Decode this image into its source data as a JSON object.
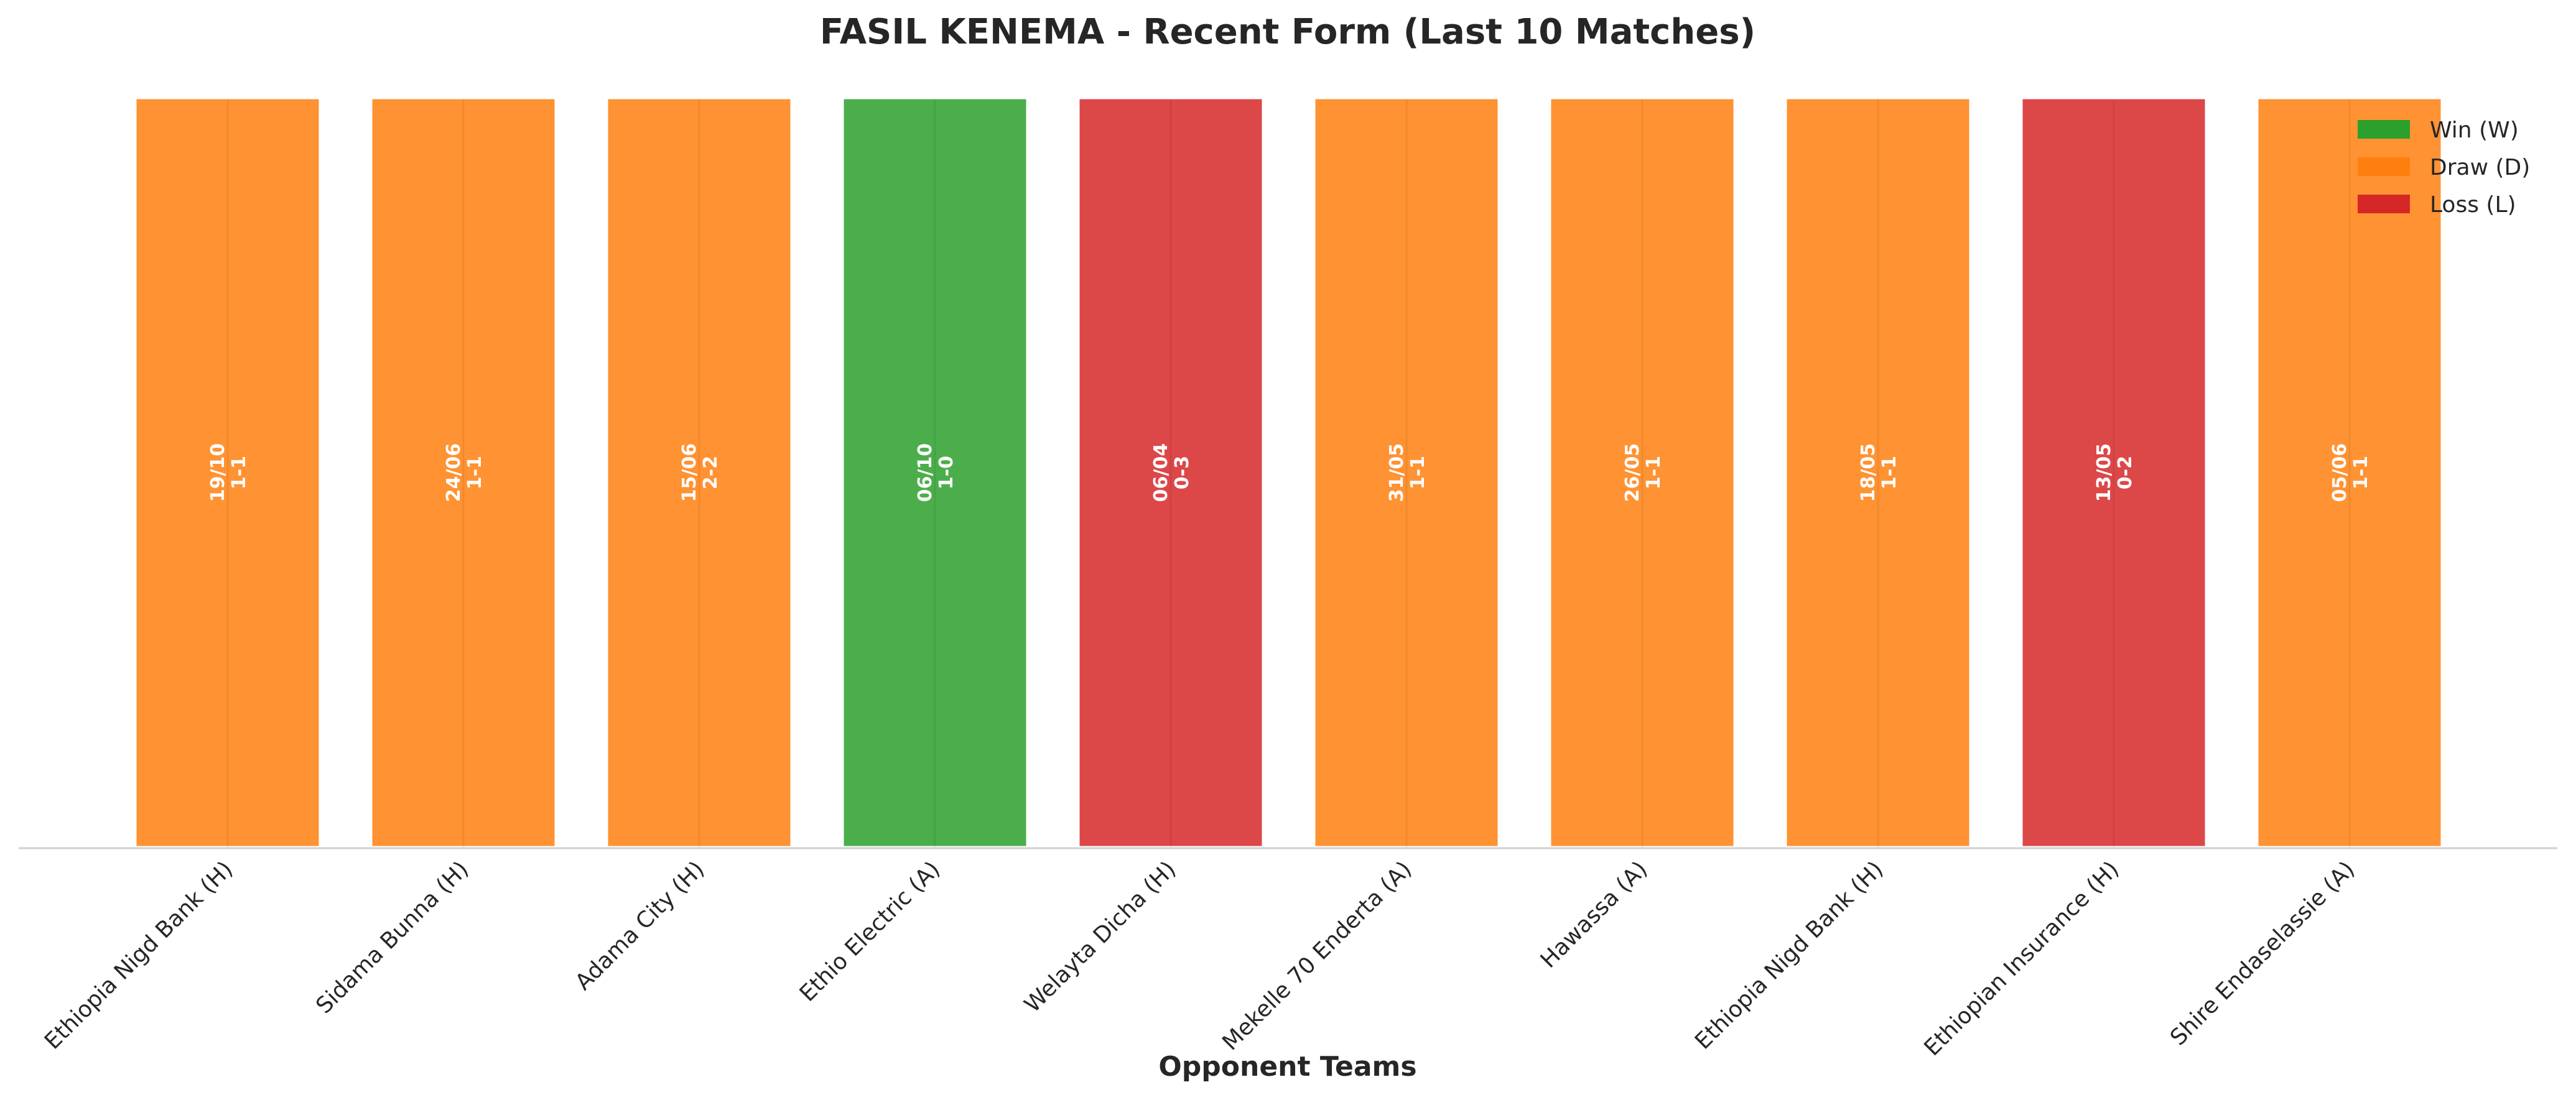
{
  "chart_data": {
    "type": "bar",
    "title": "FASIL KENEMA - Recent Form (Last 10 Matches)",
    "xlabel": "Opponent Teams",
    "ylabel": "",
    "categories": [
      "Ethiopia Nigd Bank (H)",
      "Sidama Bunna (H)",
      "Adama City (H)",
      "Ethio Electric (A)",
      "Welayta Dicha (H)",
      "Mekelle 70 Enderta (A)",
      "Hawassa (A)",
      "Ethiopia Nigd Bank (H)",
      "Ethiopian Insurance (H)",
      "Shire Endaselassie (A)"
    ],
    "values": [
      1,
      1,
      1,
      1,
      1,
      1,
      1,
      1,
      1,
      1
    ],
    "results": [
      "D",
      "D",
      "D",
      "W",
      "L",
      "D",
      "D",
      "D",
      "L",
      "D"
    ],
    "dates": [
      "19/10",
      "24/06",
      "15/06",
      "06/10",
      "06/04",
      "31/05",
      "26/05",
      "18/05",
      "13/05",
      "05/06"
    ],
    "scores": [
      "1-1",
      "1-1",
      "2-2",
      "1-0",
      "0-3",
      "1-1",
      "1-1",
      "1-1",
      "0-2",
      "1-1"
    ],
    "ylim": [
      0,
      1
    ],
    "grid": false,
    "legend_position": "top-right",
    "legend": [
      {
        "key": "W",
        "label": "Win (W)",
        "color": "#2ca02c"
      },
      {
        "key": "D",
        "label": "Draw (D)",
        "color": "#ff7f0e"
      },
      {
        "key": "L",
        "label": "Loss (L)",
        "color": "#d62728"
      }
    ]
  }
}
